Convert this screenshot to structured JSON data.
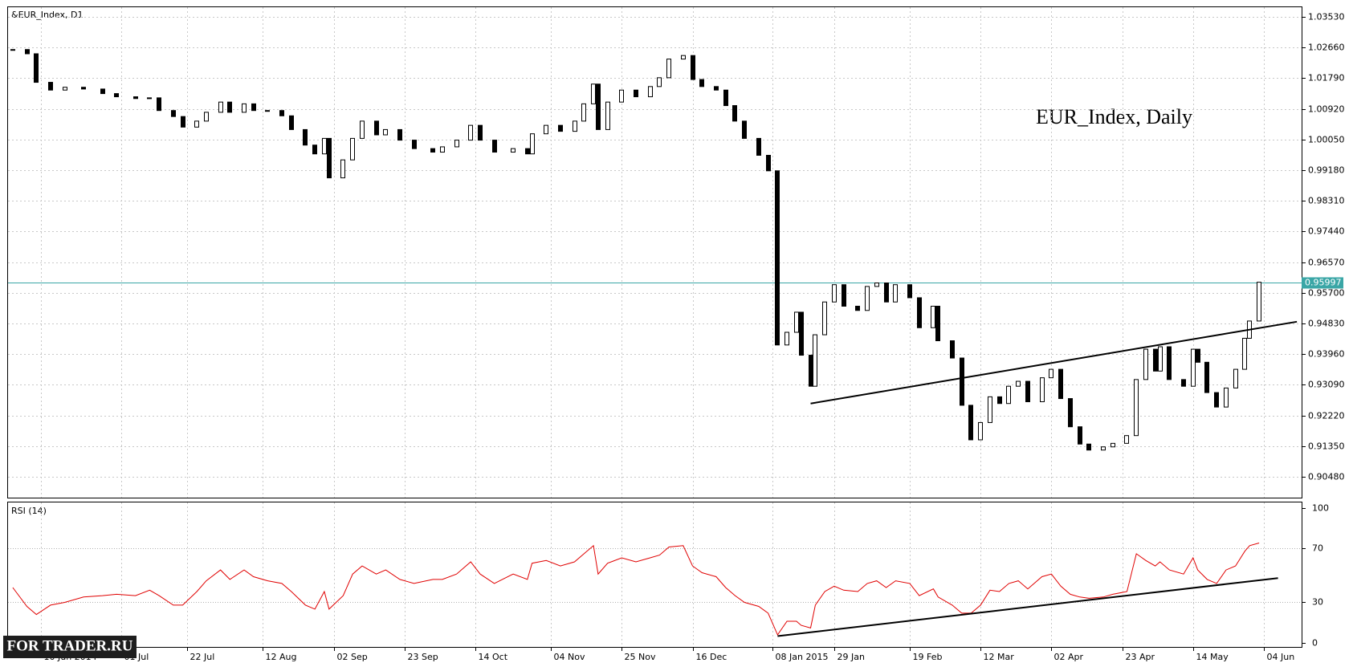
{
  "chart_data": {
    "type": "candlestick",
    "title": "&EUR_Index, D1",
    "annotation": "EUR_Index, Daily",
    "x": [
      0,
      3,
      5,
      8,
      11,
      15,
      19,
      22,
      26,
      29,
      31,
      34,
      36,
      39,
      41,
      44,
      46,
      49,
      51,
      54,
      57,
      59,
      62,
      64,
      66,
      67,
      70,
      72,
      74,
      77,
      79,
      82,
      85,
      89,
      91,
      94,
      97,
      99,
      102,
      106,
      109,
      110,
      113,
      116,
      119,
      121,
      123,
      124,
      126,
      129,
      132,
      135,
      137,
      139,
      142,
      144,
      146,
      149,
      151,
      153,
      155,
      158,
      160,
      162,
      164,
      166,
      167,
      169,
      170,
      172,
      174,
      176,
      179,
      181,
      183,
      185,
      187,
      190,
      192,
      195,
      196,
      199,
      201,
      203,
      205,
      207,
      209,
      211,
      213,
      215,
      218,
      220,
      222,
      224,
      226,
      228,
      231,
      233,
      236,
      238,
      240,
      242,
      243,
      245,
      248,
      250,
      251,
      253,
      255,
      257,
      259,
      261,
      262,
      264
    ],
    "close": [
      1.026,
      1.0248,
      1.0167,
      1.0145,
      1.0153,
      1.0148,
      1.0135,
      1.0126,
      1.0121,
      1.0123,
      1.0087,
      1.007,
      1.004,
      1.0057,
      1.0082,
      1.0111,
      1.0082,
      1.0106,
      1.0087,
      1.0087,
      1.0072,
      1.0033,
      0.9989,
      0.9964,
      1.0008,
      0.9896,
      0.9947,
      1.0008,
      1.0057,
      1.0018,
      1.0033,
      1.0003,
      0.9979,
      0.9969,
      0.9984,
      1.0003,
      1.0045,
      1.0003,
      0.9969,
      0.9979,
      0.9964,
      1.0021,
      1.0045,
      1.0028,
      1.0057,
      1.0106,
      1.0162,
      1.0033,
      1.0111,
      1.0145,
      1.0126,
      1.0155,
      1.018,
      1.0233,
      1.0243,
      1.0175,
      1.0155,
      1.0145,
      1.0101,
      1.0057,
      1.0008,
      0.996,
      0.9916,
      0.9422,
      0.9458,
      0.9515,
      0.9393,
      0.9305,
      0.9451,
      0.9544,
      0.9593,
      0.9532,
      0.952,
      0.9588,
      0.9598,
      0.9544,
      0.9593,
      0.9556,
      0.9471,
      0.9532,
      0.9434,
      0.9385,
      0.9251,
      0.9153,
      0.9202,
      0.9275,
      0.9256,
      0.9305,
      0.9319,
      0.9261,
      0.9329,
      0.9353,
      0.927,
      0.919,
      0.9141,
      0.9124,
      0.9133,
      0.9143,
      0.9165,
      0.9324,
      0.941,
      0.9348,
      0.9417,
      0.9324,
      0.9305,
      0.941,
      0.9373,
      0.9287,
      0.9246,
      0.93,
      0.9353,
      0.9441,
      0.949,
      0.96
    ],
    "xlim": [
      -1,
      273
    ],
    "xticks": [
      {
        "value": 6,
        "label": "10 Jun 2014"
      },
      {
        "value": 23,
        "label": "01 Jul"
      },
      {
        "value": 37,
        "label": "22 Jul"
      },
      {
        "value": 53,
        "label": "12 Aug"
      },
      {
        "value": 68,
        "label": "02 Sep"
      },
      {
        "value": 83,
        "label": "23 Sep"
      },
      {
        "value": 98,
        "label": "14 Oct"
      },
      {
        "value": 114,
        "label": "04 Nov"
      },
      {
        "value": 129,
        "label": "25 Nov"
      },
      {
        "value": 144,
        "label": "16 Dec"
      },
      {
        "value": 161,
        "label": "08 Jan 2015"
      },
      {
        "value": 174,
        "label": "29 Jan"
      },
      {
        "value": 190,
        "label": "19 Feb"
      },
      {
        "value": 205,
        "label": "12 Mar"
      },
      {
        "value": 220,
        "label": "02 Apr"
      },
      {
        "value": 235,
        "label": "23 Apr"
      },
      {
        "value": 250,
        "label": "14 May"
      },
      {
        "value": 265,
        "label": "04 Jun"
      }
    ],
    "ylim": [
      0.8989,
      1.038
    ],
    "yticks": [
      {
        "value": 1.0353,
        "label": "1.03530"
      },
      {
        "value": 1.0266,
        "label": "1.02660"
      },
      {
        "value": 1.0179,
        "label": "1.01790"
      },
      {
        "value": 1.0092,
        "label": "1.00920"
      },
      {
        "value": 1.0005,
        "label": "1.00050"
      },
      {
        "value": 0.9918,
        "label": "0.99180"
      },
      {
        "value": 0.9831,
        "label": "0.98310"
      },
      {
        "value": 0.9744,
        "label": "0.97440"
      },
      {
        "value": 0.9657,
        "label": "0.96570"
      },
      {
        "value": 0.957,
        "label": "0.95700"
      },
      {
        "value": 0.9483,
        "label": "0.94830"
      },
      {
        "value": 0.9396,
        "label": "0.93960"
      },
      {
        "value": 0.9309,
        "label": "0.93090"
      },
      {
        "value": 0.9222,
        "label": "0.92220"
      },
      {
        "value": 0.9135,
        "label": "0.91350"
      },
      {
        "value": 0.9048,
        "label": "0.90480"
      }
    ],
    "grid": true,
    "current_price": 0.95997,
    "current_price_color": "#3aa6a6",
    "trendline": {
      "x": [
        169,
        272
      ],
      "y": [
        0.9256,
        0.9488
      ]
    },
    "rsi": {
      "title": "RSI (14)",
      "color": "#e00000",
      "ylim": [
        -3,
        104
      ],
      "yticks": [
        0,
        30,
        70,
        100
      ],
      "values": [
        41,
        27,
        21,
        28,
        30,
        34,
        35,
        36,
        35,
        39,
        35,
        28,
        28,
        38,
        46,
        54,
        47,
        54,
        49,
        46,
        44,
        38,
        28,
        25,
        38,
        25,
        35,
        51,
        57,
        51,
        54,
        47,
        44,
        47,
        47,
        51,
        60,
        51,
        44,
        51,
        47,
        59,
        61,
        57,
        60,
        66,
        72,
        51,
        59,
        63,
        60,
        63,
        65,
        71,
        72,
        57,
        52,
        49,
        41,
        35,
        30,
        27,
        22,
        6,
        16,
        16,
        13,
        11,
        28,
        38,
        42,
        39,
        38,
        44,
        46,
        41,
        46,
        44,
        35,
        40,
        34,
        28,
        22,
        22,
        28,
        39,
        38,
        44,
        46,
        40,
        49,
        51,
        42,
        36,
        34,
        33,
        34,
        36,
        38,
        66,
        61,
        57,
        60,
        54,
        51,
        63,
        54,
        47,
        44,
        54,
        57,
        68,
        72,
        74
      ],
      "trendline": {
        "x": [
          162,
          268
        ],
        "y": [
          5,
          48
        ]
      }
    },
    "watermark": "FOR TRADER.RU"
  }
}
